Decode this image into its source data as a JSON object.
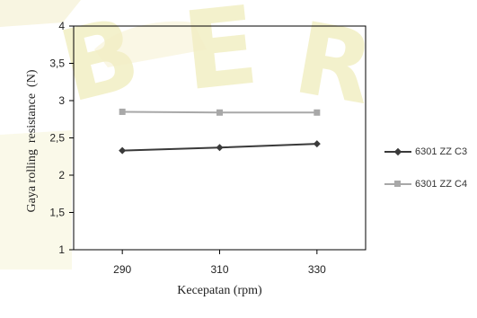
{
  "chart_data": {
    "type": "line",
    "title": "",
    "xlabel": "Kecepatan (rpm)",
    "ylabel": "Gaya rolling  resistance  (N)",
    "categories": [
      "290",
      "310",
      "330"
    ],
    "x": [
      290,
      310,
      330
    ],
    "xlim": [
      280,
      340
    ],
    "ylim": [
      1,
      4
    ],
    "yticks": [
      1,
      1.5,
      2,
      2.5,
      3,
      3.5,
      4
    ],
    "ytick_labels": [
      "1",
      "1,5",
      "2",
      "2,5",
      "3",
      "3,5",
      "4"
    ],
    "grid": false,
    "legend_position": "right",
    "series": [
      {
        "name": "6301 ZZ C3",
        "values": [
          2.33,
          2.37,
          2.42
        ],
        "color": "#3a3a3a",
        "marker": "diamond"
      },
      {
        "name": "6301 ZZ C4",
        "values": [
          2.85,
          2.84,
          2.84
        ],
        "color": "#a8a8a8",
        "marker": "square"
      }
    ]
  },
  "watermark": {
    "letters": "BER",
    "color": "#e8e39a"
  }
}
